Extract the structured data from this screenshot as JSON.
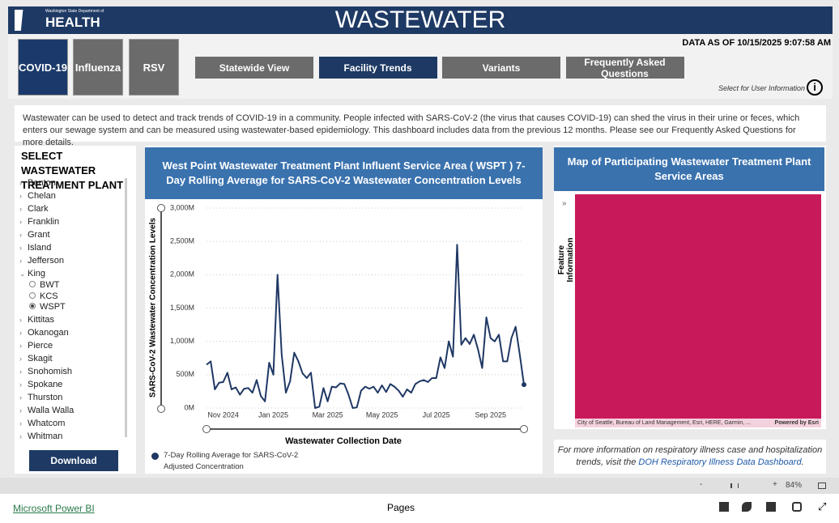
{
  "header": {
    "logo_small": "Washington State Department of",
    "logo": "HEALTH",
    "title": "WASTEWATER",
    "data_as_of": "DATA AS OF 10/15/2025 9:07:58 AM"
  },
  "disease_tabs": [
    "COVID-19",
    "Influenza",
    "RSV"
  ],
  "view_tabs": [
    "Statewide View",
    "Facility Trends",
    "Variants",
    "Frequently Asked Questions"
  ],
  "info_hint": "Select for User Information",
  "info_icon": "i",
  "intro": "Wastewater can be used to detect and track trends of COVID-19 in a community. People infected with SARS-CoV-2 (the virus that causes COVID-19) can shed the virus in their urine or feces, which enters our sewage system and can be measured using wastewater-based epidemiology. This dashboard includes data from the previous 12 months. Please see our Frequently Asked Questions for more details.",
  "plant_selector": {
    "title": "SELECT WASTEWATER TREATMENT PLANT",
    "counties": [
      "Benton",
      "Chelan",
      "Clark",
      "Franklin",
      "Grant",
      "Island",
      "Jefferson",
      "King",
      "Kittitas",
      "Okanogan",
      "Pierce",
      "Skagit",
      "Snohomish",
      "Spokane",
      "Thurston",
      "Walla Walla",
      "Whatcom",
      "Whitman"
    ],
    "king_plants": [
      "BWT",
      "KCS",
      "WSPT"
    ],
    "download": "Download"
  },
  "chart_data": {
    "type": "line",
    "title": "West Point Wastewater Treatment Plant Influent Service Area ( WSPT ) 7-Day Rolling Average for SARS-CoV-2 Wastewater Concentration Levels",
    "x_label": "Wastewater Collection Date",
    "y_label": "SARS-CoV-2 Wastewater Concentration Levels",
    "categories": [
      null,
      null,
      null,
      null,
      "Nov 2024",
      null,
      null,
      null,
      null,
      null,
      null,
      null,
      null,
      null,
      null,
      null,
      "Jan 2025",
      null,
      null,
      null,
      null,
      null,
      null,
      null,
      null,
      null,
      null,
      null,
      null,
      "Mar 2025",
      null,
      null,
      null,
      null,
      null,
      null,
      null,
      null,
      null,
      null,
      null,
      null,
      "May 2025",
      null,
      null,
      null,
      null,
      null,
      null,
      null,
      null,
      null,
      null,
      null,
      null,
      "Jul 2025",
      null,
      null,
      null,
      null,
      null,
      null,
      null,
      null,
      null,
      null,
      null,
      null,
      "Sep 2025",
      null,
      null,
      null,
      null,
      null,
      null,
      null,
      null
    ],
    "series": [
      {
        "name": "7-Day Rolling Average for SARS-CoV-2 Adjusted Concentration",
        "color": "#1f3864",
        "values": [
          650,
          700,
          280,
          380,
          390,
          530,
          280,
          310,
          200,
          290,
          300,
          230,
          420,
          180,
          100,
          680,
          500,
          2000,
          800,
          230,
          400,
          830,
          700,
          520,
          450,
          530,
          0,
          20,
          300,
          100,
          320,
          310,
          370,
          360,
          200,
          0,
          10,
          260,
          320,
          290,
          320,
          230,
          340,
          240,
          360,
          320,
          260,
          170,
          280,
          230,
          360,
          400,
          420,
          390,
          450,
          450,
          760,
          600,
          1000,
          770,
          2450,
          950,
          1050,
          960,
          1100,
          880,
          600,
          1360,
          1050,
          1000,
          1100,
          700,
          700,
          1050,
          1220,
          800,
          350
        ]
      }
    ],
    "ylim": [
      0,
      3000
    ],
    "yticks": [
      {
        "value": 0,
        "label": "0M"
      },
      {
        "value": 500,
        "label": "500M"
      },
      {
        "value": 1000,
        "label": "1,000M"
      },
      {
        "value": 1500,
        "label": "1,500M"
      },
      {
        "value": 2000,
        "label": "2,000M"
      },
      {
        "value": 2500,
        "label": "2,500M"
      },
      {
        "value": 3000,
        "label": "3,000M"
      }
    ],
    "grid": true
  },
  "map": {
    "title": "Map of Participating Wastewater Treatment Plant Service Areas",
    "side_label": "Feature Information",
    "attribution": "City of Seattle, Bureau of Land Management, Esri, HERE, Garmin, ...",
    "powered": "Powered by Esri",
    "footnote": "For more information on respiratory illness case and hospitalization trends, visit the",
    "footnote_link": "DOH Respiratory Illness Data Dashboard",
    "footnote_end": "."
  },
  "footer": {
    "zoom_minus": "-",
    "zoom_plus": "+",
    "zoom": "84%",
    "powerbi": "Microsoft Power BI",
    "pages": "Pages"
  }
}
